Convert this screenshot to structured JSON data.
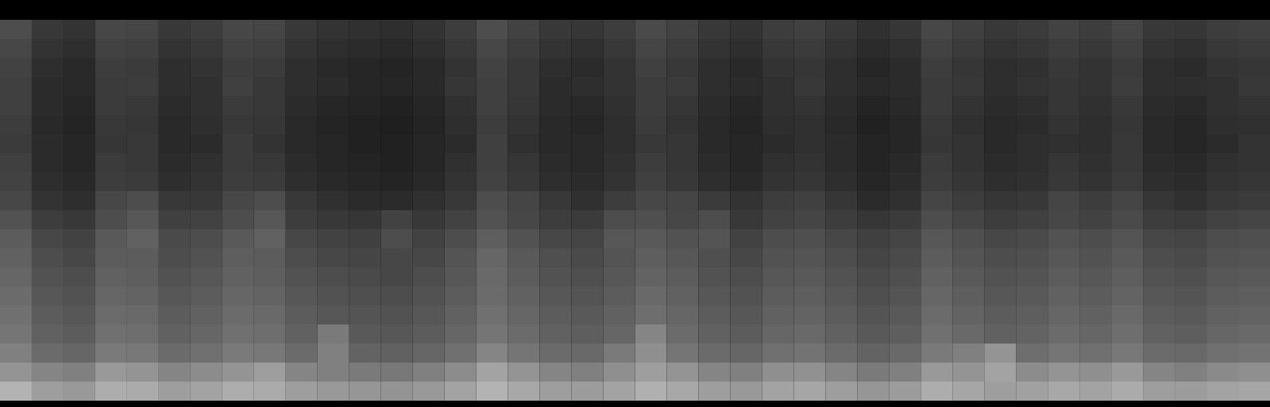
{
  "chart_data": {
    "type": "heatmap",
    "tick_labels": false,
    "color_range": [
      0,
      100
    ],
    "cells": [
      [
        30,
        22,
        20,
        28,
        27,
        22,
        24,
        28,
        27,
        22,
        20,
        19,
        18,
        20,
        24,
        30,
        26,
        22,
        21,
        24,
        29,
        26,
        22,
        20,
        24,
        25,
        22,
        19,
        21,
        28,
        25,
        22,
        23,
        26,
        24,
        27,
        22,
        21,
        24,
        25
      ],
      [
        28,
        20,
        18,
        26,
        25,
        20,
        22,
        26,
        25,
        20,
        18,
        17,
        16,
        18,
        22,
        28,
        24,
        20,
        19,
        22,
        27,
        24,
        20,
        18,
        22,
        23,
        20,
        17,
        19,
        26,
        23,
        20,
        21,
        24,
        22,
        25,
        20,
        19,
        22,
        23
      ],
      [
        26,
        18,
        16,
        24,
        23,
        18,
        20,
        24,
        23,
        18,
        16,
        15,
        14,
        16,
        20,
        26,
        22,
        18,
        17,
        20,
        25,
        22,
        18,
        16,
        20,
        21,
        18,
        15,
        17,
        24,
        21,
        18,
        19,
        22,
        20,
        23,
        18,
        17,
        20,
        21
      ],
      [
        25,
        17,
        16,
        23,
        24,
        18,
        19,
        25,
        22,
        18,
        17,
        15,
        15,
        16,
        21,
        25,
        22,
        17,
        18,
        20,
        24,
        23,
        18,
        17,
        19,
        22,
        18,
        16,
        17,
        23,
        22,
        18,
        20,
        21,
        20,
        24,
        18,
        18,
        19,
        22
      ],
      [
        25,
        17,
        15,
        23,
        22,
        17,
        19,
        23,
        22,
        17,
        15,
        14,
        13,
        15,
        19,
        25,
        21,
        17,
        16,
        19,
        24,
        21,
        17,
        15,
        19,
        20,
        17,
        14,
        16,
        23,
        20,
        17,
        18,
        21,
        19,
        22,
        17,
        16,
        19,
        20
      ],
      [
        24,
        16,
        14,
        22,
        21,
        16,
        18,
        22,
        21,
        16,
        14,
        13,
        12,
        14,
        18,
        24,
        20,
        16,
        15,
        18,
        23,
        20,
        16,
        14,
        18,
        19,
        16,
        13,
        15,
        22,
        19,
        16,
        17,
        20,
        18,
        21,
        16,
        15,
        18,
        19
      ],
      [
        23,
        17,
        15,
        21,
        22,
        16,
        17,
        23,
        20,
        16,
        15,
        13,
        13,
        15,
        17,
        25,
        19,
        16,
        16,
        18,
        22,
        21,
        16,
        15,
        17,
        19,
        17,
        14,
        15,
        21,
        20,
        16,
        18,
        19,
        18,
        22,
        16,
        15,
        17,
        20
      ],
      [
        25,
        17,
        15,
        23,
        22,
        17,
        19,
        23,
        22,
        17,
        15,
        14,
        13,
        15,
        19,
        25,
        21,
        17,
        16,
        19,
        24,
        21,
        17,
        15,
        19,
        20,
        17,
        14,
        16,
        23,
        20,
        17,
        18,
        21,
        19,
        22,
        17,
        16,
        19,
        20
      ],
      [
        26,
        18,
        16,
        24,
        23,
        18,
        20,
        24,
        23,
        18,
        16,
        15,
        14,
        16,
        20,
        26,
        22,
        18,
        17,
        20,
        25,
        22,
        18,
        16,
        20,
        21,
        18,
        15,
        17,
        24,
        21,
        18,
        19,
        22,
        20,
        23,
        18,
        17,
        20,
        21
      ],
      [
        28,
        20,
        18,
        28,
        30,
        22,
        22,
        28,
        30,
        22,
        19,
        17,
        17,
        19,
        22,
        30,
        27,
        22,
        19,
        24,
        28,
        27,
        23,
        20,
        24,
        25,
        21,
        17,
        19,
        27,
        24,
        21,
        22,
        27,
        24,
        27,
        21,
        19,
        22,
        23
      ],
      [
        32,
        24,
        22,
        30,
        34,
        25,
        26,
        30,
        34,
        24,
        22,
        21,
        26,
        22,
        26,
        32,
        28,
        24,
        23,
        30,
        31,
        28,
        30,
        22,
        26,
        27,
        24,
        21,
        23,
        30,
        27,
        24,
        25,
        28,
        26,
        29,
        24,
        23,
        26,
        27
      ],
      [
        36,
        28,
        26,
        35,
        38,
        29,
        30,
        35,
        38,
        28,
        26,
        25,
        30,
        26,
        30,
        37,
        32,
        28,
        27,
        34,
        35,
        32,
        33,
        26,
        30,
        31,
        28,
        25,
        27,
        34,
        31,
        28,
        29,
        32,
        30,
        33,
        28,
        27,
        30,
        31
      ],
      [
        38,
        30,
        28,
        36,
        36,
        30,
        32,
        37,
        36,
        30,
        28,
        27,
        28,
        28,
        33,
        40,
        35,
        31,
        29,
        33,
        37,
        34,
        31,
        28,
        32,
        33,
        30,
        27,
        29,
        36,
        33,
        30,
        31,
        34,
        32,
        35,
        30,
        29,
        32,
        33
      ],
      [
        40,
        32,
        30,
        38,
        37,
        32,
        34,
        38,
        37,
        32,
        30,
        29,
        28,
        30,
        34,
        41,
        36,
        32,
        31,
        34,
        39,
        36,
        32,
        30,
        34,
        35,
        32,
        29,
        31,
        38,
        35,
        32,
        33,
        36,
        34,
        37,
        32,
        31,
        34,
        35
      ],
      [
        42,
        34,
        32,
        40,
        39,
        34,
        36,
        40,
        39,
        34,
        32,
        31,
        30,
        32,
        36,
        42,
        38,
        34,
        33,
        36,
        41,
        38,
        34,
        32,
        36,
        37,
        34,
        31,
        33,
        40,
        37,
        34,
        35,
        38,
        36,
        39,
        34,
        33,
        36,
        37
      ],
      [
        44,
        36,
        34,
        42,
        41,
        36,
        38,
        42,
        41,
        36,
        34,
        33,
        32,
        34,
        38,
        44,
        40,
        36,
        35,
        38,
        43,
        40,
        36,
        34,
        38,
        39,
        36,
        33,
        35,
        42,
        39,
        36,
        37,
        40,
        38,
        41,
        36,
        35,
        38,
        39
      ],
      [
        46,
        38,
        36,
        44,
        43,
        38,
        40,
        44,
        43,
        38,
        48,
        35,
        34,
        36,
        40,
        46,
        42,
        38,
        37,
        40,
        52,
        42,
        38,
        36,
        40,
        41,
        38,
        35,
        37,
        44,
        41,
        38,
        39,
        42,
        40,
        43,
        38,
        37,
        40,
        41
      ],
      [
        50,
        42,
        40,
        48,
        47,
        42,
        44,
        48,
        47,
        42,
        50,
        39,
        38,
        40,
        44,
        52,
        46,
        42,
        41,
        48,
        56,
        46,
        42,
        40,
        44,
        45,
        42,
        39,
        41,
        48,
        50,
        58,
        43,
        46,
        44,
        47,
        42,
        41,
        44,
        45
      ],
      [
        58,
        52,
        50,
        60,
        58,
        52,
        55,
        58,
        62,
        52,
        50,
        48,
        47,
        50,
        55,
        64,
        58,
        52,
        50,
        56,
        62,
        58,
        52,
        50,
        56,
        57,
        52,
        48,
        50,
        60,
        58,
        64,
        55,
        58,
        56,
        60,
        52,
        50,
        54,
        56
      ],
      [
        70,
        62,
        60,
        68,
        67,
        62,
        64,
        68,
        67,
        62,
        60,
        59,
        58,
        60,
        64,
        70,
        66,
        62,
        61,
        64,
        69,
        66,
        62,
        60,
        64,
        65,
        62,
        59,
        61,
        68,
        65,
        62,
        63,
        66,
        64,
        67,
        62,
        61,
        64,
        65
      ]
    ]
  }
}
